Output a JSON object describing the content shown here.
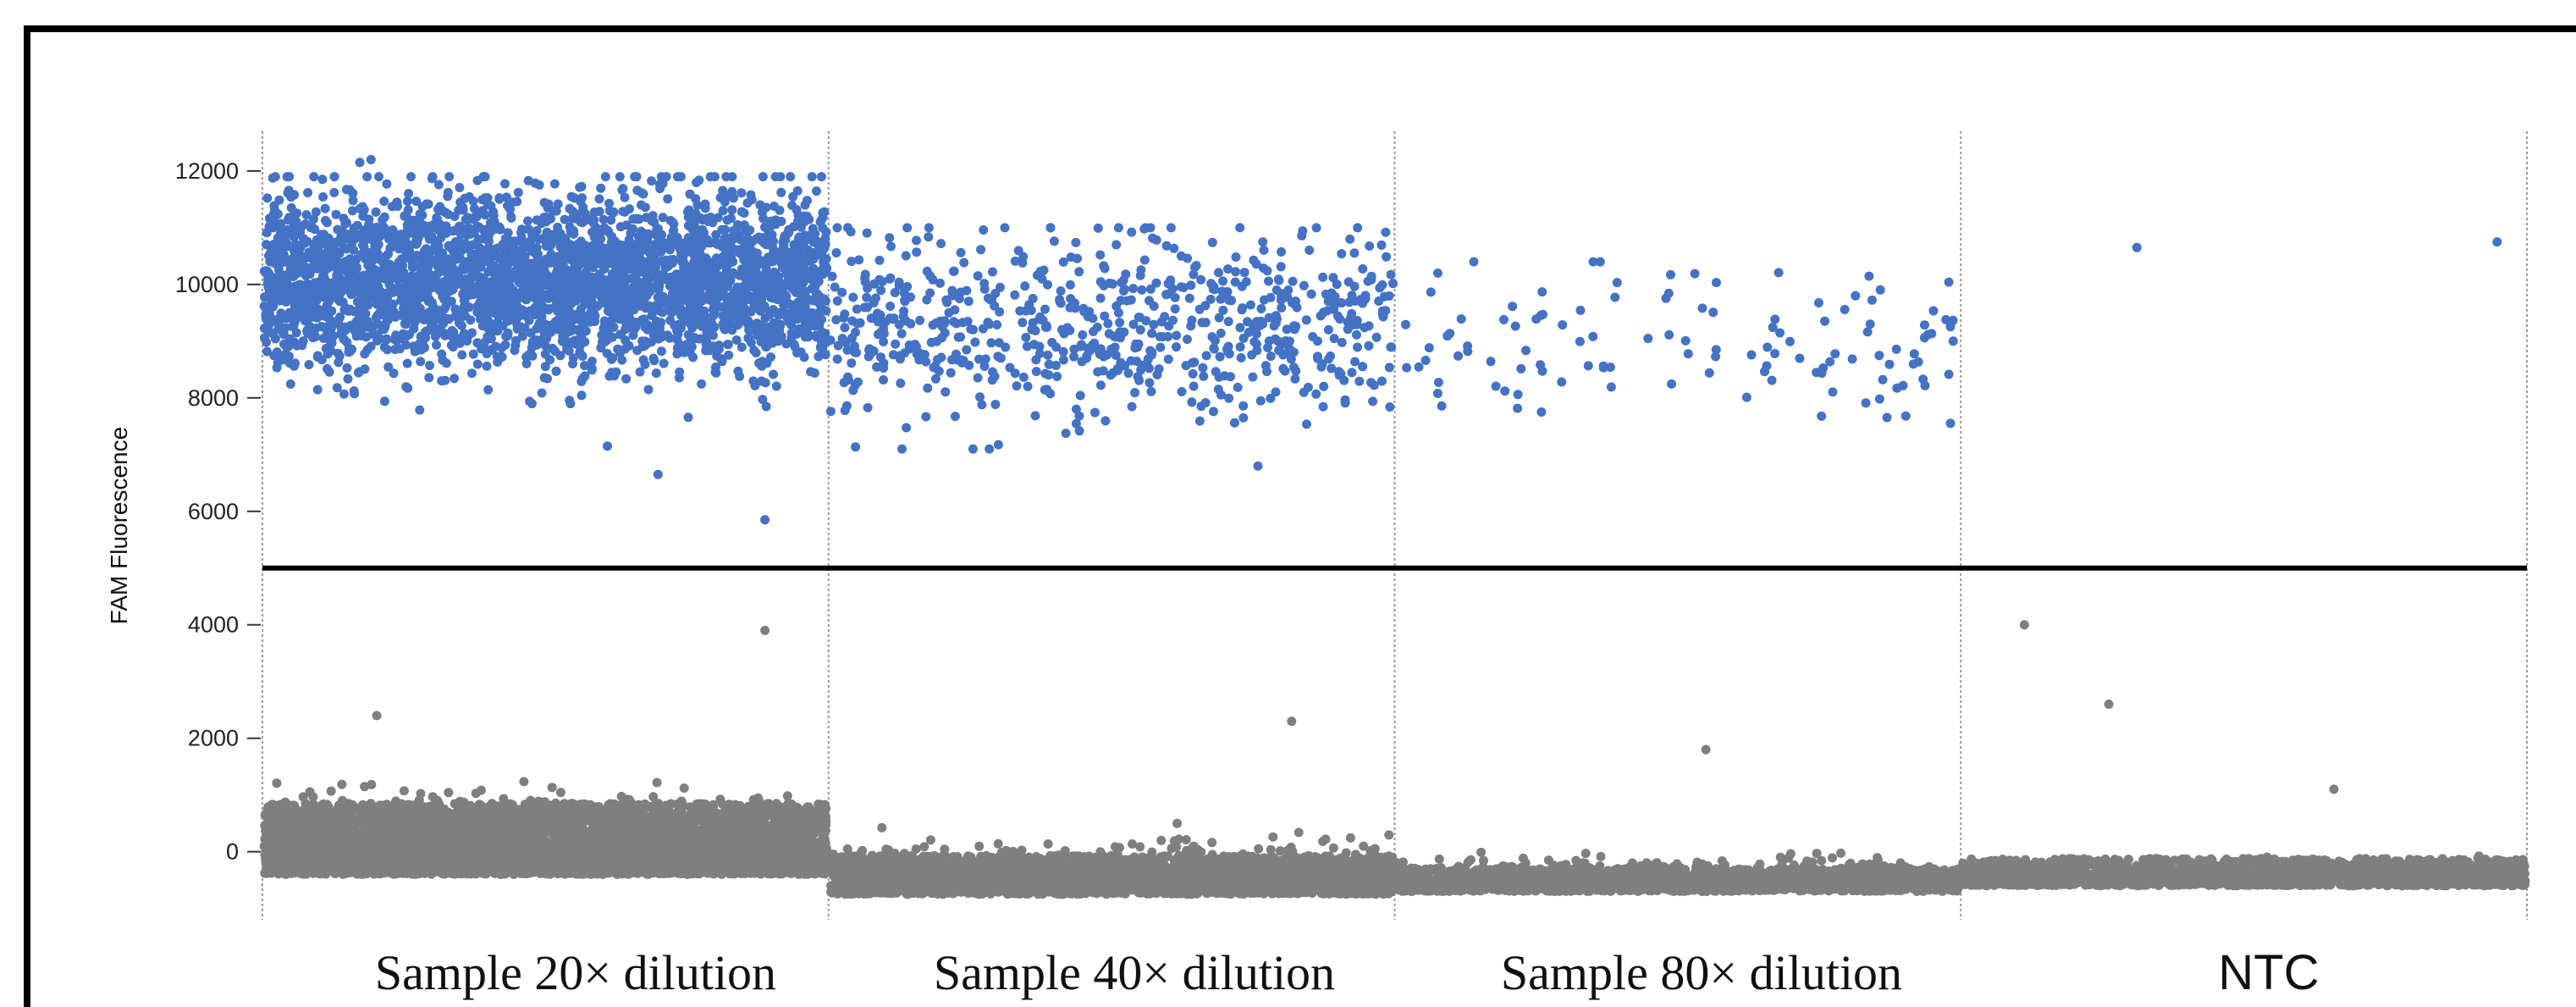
{
  "chart_data": {
    "type": "scatter",
    "title": "",
    "xlabel": "",
    "ylabel": "FAM Fluorescence",
    "ylim": [
      -1200,
      12700
    ],
    "yticks": [
      0,
      2000,
      4000,
      6000,
      8000,
      10000,
      12000
    ],
    "threshold": 5000,
    "grid": false,
    "colors": {
      "positive": "#4472C4",
      "negative": "#7F7F7F",
      "threshold": "#000000",
      "divider": "#9a9a9a"
    },
    "categories": [
      "Sample 20×  dilution",
      "Sample 40×  dilution",
      "Sample 80×  dilution",
      "NTC"
    ],
    "series": [
      {
        "name": "Sample 20×  dilution",
        "positive": {
          "count": 3200,
          "center": 10100,
          "spread": 750,
          "range": [
            7600,
            11900
          ],
          "outliers": [
            {
              "x": 0.89,
              "y": 5850
            },
            {
              "x": 0.7,
              "y": 6650
            },
            {
              "x": 0.61,
              "y": 7150
            },
            {
              "x": 0.17,
              "y": 12150
            },
            {
              "x": 0.19,
              "y": 12200
            }
          ]
        },
        "negative": {
          "count": 5200,
          "floor": -400,
          "center": 300,
          "spread": 550,
          "range": [
            -500,
            2000
          ],
          "outliers": [
            {
              "x": 0.89,
              "y": 3900
            },
            {
              "x": 0.2,
              "y": 2400
            }
          ]
        }
      },
      {
        "name": "Sample 40×  dilution",
        "positive": {
          "count": 700,
          "center": 9300,
          "spread": 850,
          "range": [
            7100,
            11000
          ],
          "outliers": [
            {
              "x": 0.76,
              "y": 6800
            }
          ]
        },
        "negative": {
          "count": 3000,
          "floor": -750,
          "center": -450,
          "spread": 380,
          "range": [
            -800,
            1300
          ],
          "outliers": [
            {
              "x": 0.82,
              "y": 2300
            }
          ]
        }
      },
      {
        "name": "Sample 80×  dilution",
        "positive": {
          "count": 120,
          "center": 9000,
          "spread": 700,
          "range": [
            7500,
            10400
          ],
          "outliers": []
        },
        "negative": {
          "count": 2000,
          "floor": -700,
          "center": -550,
          "spread": 260,
          "range": [
            -1000,
            1500
          ],
          "outliers": [
            {
              "x": 0.55,
              "y": 1800
            }
          ]
        }
      },
      {
        "name": "NTC",
        "positive": {
          "count": 0,
          "center": 0,
          "spread": 0,
          "range": [
            0,
            0
          ],
          "outliers": [
            {
              "x": 0.31,
              "y": 10650
            },
            {
              "x": 0.95,
              "y": 10750
            }
          ]
        },
        "negative": {
          "count": 2200,
          "floor": -600,
          "center": -300,
          "spread": 180,
          "range": [
            -1100,
            1300
          ],
          "outliers": [
            {
              "x": 0.11,
              "y": 4000
            },
            {
              "x": 0.26,
              "y": 2600
            },
            {
              "x": 0.66,
              "y": 1100
            }
          ]
        }
      }
    ]
  }
}
